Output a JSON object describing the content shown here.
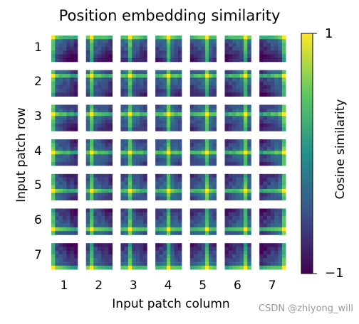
{
  "chart_data": {
    "type": "heatmap",
    "title": "Position embedding similarity",
    "xlabel": "Input patch column",
    "ylabel": "Input patch row",
    "x_tick_labels": [
      "1",
      "2",
      "3",
      "4",
      "5",
      "6",
      "7"
    ],
    "y_tick_labels": [
      "1",
      "2",
      "3",
      "4",
      "5",
      "6",
      "7"
    ],
    "grid": "7x7 patches, each tile a 7x7 similarity map",
    "colorbar": {
      "label": "Cosine similarity",
      "min": -1,
      "max": 1,
      "min_label": "−1",
      "max_label": "1",
      "colormap": "viridis",
      "colors": [
        "#440154",
        "#3b528b",
        "#21918c",
        "#5ec962",
        "#fde725"
      ]
    }
  },
  "watermark": "CSDN @zhiyong_will"
}
